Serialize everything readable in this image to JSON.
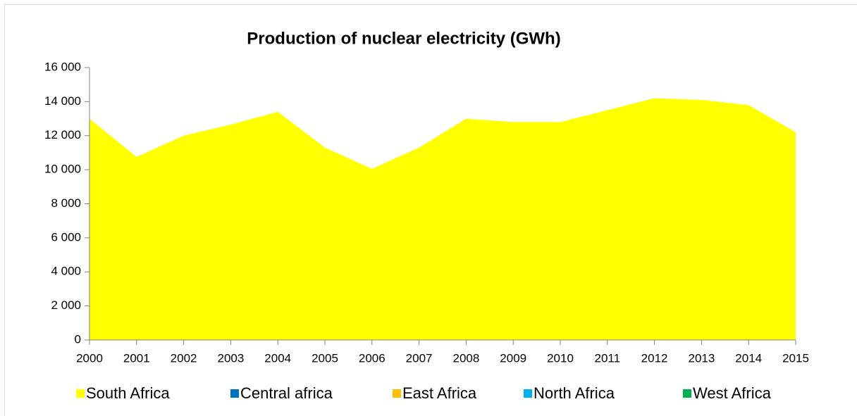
{
  "chart_data": {
    "type": "area",
    "title": "Production of nuclear electricity (GWh)",
    "categories": [
      "2000",
      "2001",
      "2002",
      "2003",
      "2004",
      "2005",
      "2006",
      "2007",
      "2008",
      "2009",
      "2010",
      "2011",
      "2012",
      "2013",
      "2014",
      "2015"
    ],
    "series": [
      {
        "name": "South Africa",
        "color": "#ffff00",
        "values": [
          13000,
          10750,
          12000,
          12650,
          13400,
          11300,
          10050,
          11300,
          13000,
          12800,
          12800,
          13500,
          14200,
          14100,
          13800,
          12200
        ]
      },
      {
        "name": "Central africa",
        "color": "#0070c0",
        "values": [
          0,
          0,
          0,
          0,
          0,
          0,
          0,
          0,
          0,
          0,
          0,
          0,
          0,
          0,
          0,
          0
        ]
      },
      {
        "name": "East Africa",
        "color": "#ffc000",
        "values": [
          0,
          0,
          0,
          0,
          0,
          0,
          0,
          0,
          0,
          0,
          0,
          0,
          0,
          0,
          0,
          0
        ]
      },
      {
        "name": "North Africa",
        "color": "#00b0f0",
        "values": [
          0,
          0,
          0,
          0,
          0,
          0,
          0,
          0,
          0,
          0,
          0,
          0,
          0,
          0,
          0,
          0
        ]
      },
      {
        "name": "West Africa",
        "color": "#00b050",
        "values": [
          0,
          0,
          0,
          0,
          0,
          0,
          0,
          0,
          0,
          0,
          0,
          0,
          0,
          0,
          0,
          0
        ]
      }
    ],
    "stacked": true,
    "ylim": [
      0,
      16000
    ],
    "yticks": [
      0,
      {
        "value": 2000,
        "label": "2 000"
      },
      {
        "value": 4000,
        "label": "4 000"
      },
      {
        "value": 6000,
        "label": "6 000"
      },
      {
        "value": 8000,
        "label": "8 000"
      },
      {
        "value": 10000,
        "label": "10 000"
      },
      {
        "value": 12000,
        "label": "12 000"
      },
      {
        "value": 14000,
        "label": "14 000"
      },
      {
        "value": 16000,
        "label": "16 000"
      }
    ],
    "legend": "bottom"
  }
}
